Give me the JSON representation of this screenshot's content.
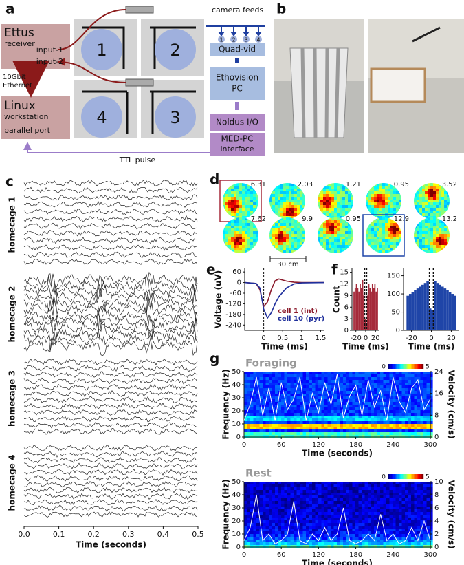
{
  "panel_a": {
    "label": "a",
    "ettus": {
      "title": "Ettus",
      "subtitle": "receiver",
      "inputs": [
        "input-1",
        "input-2"
      ]
    },
    "link": [
      "10Gbit",
      "Ethernet"
    ],
    "linux": {
      "title": "Linux",
      "subtitle": "workstation",
      "port": "parallel port"
    },
    "cages": [
      "1",
      "2",
      "4",
      "3"
    ],
    "camera_feeds": "camera feeds",
    "feeds": [
      "1",
      "2",
      "3",
      "4"
    ],
    "quad_vid": "Quad-vid",
    "ethovision": [
      "Ethovision",
      "PC"
    ],
    "noldus": "Noldus I/O",
    "med_pc": [
      "MED-PC",
      "interface"
    ],
    "ttl": "TTL pulse"
  },
  "panel_b": {
    "label": "b"
  },
  "panel_c": {
    "label": "c",
    "groups": [
      "homecage 1",
      "homecage 2",
      "homecage 3",
      "homecage 4"
    ],
    "xlim": [
      0,
      0.5
    ],
    "xticks": [
      {
        "value": 0,
        "label": "0.0"
      },
      0.1,
      0.2,
      0.3,
      0.4,
      0.5
    ],
    "xlabel": "Time (seconds)"
  },
  "panel_d": {
    "label": "d",
    "rates": [
      6.31,
      2.03,
      1.21,
      0.95,
      3.52,
      7.62,
      9.9,
      0.95,
      12.9,
      13.2
    ],
    "scale": "30 cm"
  },
  "chart_data": [
    {
      "type": "line",
      "label": "e",
      "xlabel": "Time (ms)",
      "ylabel": "Voltage (uV)",
      "xlim": [
        -0.5,
        1.6
      ],
      "ylim": [
        -270,
        80
      ],
      "xticks": [
        0,
        0.5,
        1,
        1.5
      ],
      "yticks": [
        60,
        0,
        -60,
        -120,
        -180,
        -240
      ],
      "x": [
        -0.5,
        -0.2,
        -0.1,
        0,
        0.1,
        0.2,
        0.3,
        0.4,
        0.6,
        0.8,
        1.0,
        1.6
      ],
      "series": [
        {
          "name": "cell 1 (int)",
          "color": "#8b1a2b",
          "values": [
            0,
            -5,
            -40,
            -135,
            -110,
            -40,
            10,
            20,
            8,
            2,
            0,
            0
          ]
        },
        {
          "name": "cell 10 (pyr)",
          "color": "#1f2f9c",
          "values": [
            0,
            -5,
            -30,
            -150,
            -200,
            -170,
            -120,
            -80,
            -30,
            -8,
            -2,
            0
          ]
        }
      ]
    },
    {
      "type": "histogram",
      "label": "f",
      "ylabel": "Count",
      "xlabel": "Time (ms)",
      "color": "#a52a3a",
      "xlim": [
        -28,
        28
      ],
      "ylim": [
        0,
        16
      ],
      "xticks": [
        -20,
        0,
        20
      ],
      "yticks": [
        0,
        3,
        6,
        9,
        12,
        15
      ],
      "bins": [
        -25,
        -22.5,
        -20,
        -17.5,
        -15,
        -12.5,
        -10,
        -7.5,
        -5,
        -2.5,
        0,
        2.5,
        5,
        7.5,
        10,
        12.5,
        15,
        17.5,
        20,
        22.5,
        25
      ],
      "values": [
        10,
        11,
        12,
        11,
        10,
        12,
        11,
        13,
        9,
        3,
        2,
        9,
        12,
        11,
        10,
        12,
        11,
        12,
        10,
        11
      ]
    },
    {
      "type": "histogram",
      "xlabel": "Time (ms)",
      "color": "#1f45a8",
      "xlim": [
        -28,
        28
      ],
      "ylim": [
        0,
        170
      ],
      "xticks": [
        -20,
        0,
        20
      ],
      "yticks": [
        0,
        50,
        100,
        150
      ],
      "bins": [
        -25,
        -22.5,
        -20,
        -17.5,
        -15,
        -12.5,
        -10,
        -7.5,
        -5,
        -2.5,
        0,
        2.5,
        5,
        7.5,
        10,
        12.5,
        15,
        17.5,
        20,
        22.5,
        25
      ],
      "values": [
        95,
        100,
        105,
        110,
        115,
        120,
        125,
        130,
        135,
        60,
        55,
        135,
        130,
        125,
        120,
        115,
        110,
        105,
        100,
        95
      ]
    },
    {
      "type": "spectrogram",
      "label": "g",
      "title": "Foraging",
      "xlabel": "Time (seconds)",
      "ylabel": "Frequency (Hz)",
      "y2label": "Velocity (cm/s)",
      "xlim": [
        0,
        300
      ],
      "ylim": [
        0,
        50
      ],
      "y2lim": [
        0,
        24
      ],
      "xticks": [
        0,
        60,
        120,
        180,
        240,
        300
      ],
      "yticks": [
        0,
        10,
        20,
        30,
        40,
        50
      ],
      "y2ticks": [
        0,
        8,
        16,
        24
      ],
      "colorbar": [
        0,
        5
      ],
      "x": [
        0,
        10,
        20,
        30,
        40,
        50,
        60,
        70,
        80,
        90,
        100,
        110,
        120,
        130,
        140,
        150,
        160,
        170,
        180,
        190,
        200,
        210,
        220,
        230,
        240,
        250,
        260,
        270,
        280,
        290,
        300
      ],
      "series": [
        {
          "name": "Velocity",
          "color": "#ffffff",
          "axis": "y2",
          "values": [
            6,
            12,
            22,
            8,
            18,
            6,
            20,
            10,
            14,
            22,
            6,
            16,
            9,
            20,
            12,
            23,
            7,
            15,
            19,
            8,
            21,
            11,
            17,
            6,
            22,
            13,
            9,
            18,
            21,
            10,
            14
          ]
        }
      ]
    },
    {
      "type": "spectrogram",
      "title": "Rest",
      "xlabel": "Time (seconds)",
      "ylabel": "Frequency (Hz)",
      "y2label": "Velocity (cm/s)",
      "xlim": [
        0,
        300
      ],
      "ylim": [
        0,
        50
      ],
      "y2lim": [
        0,
        10
      ],
      "xticks": [
        0,
        60,
        120,
        180,
        240,
        300
      ],
      "yticks": [
        0,
        10,
        20,
        30,
        40,
        50
      ],
      "y2ticks": [
        0,
        2,
        4,
        6,
        8,
        10
      ],
      "colorbar": [
        0,
        5
      ],
      "x": [
        0,
        10,
        20,
        30,
        40,
        50,
        60,
        70,
        80,
        90,
        100,
        110,
        120,
        130,
        140,
        150,
        160,
        170,
        180,
        190,
        200,
        210,
        220,
        230,
        240,
        250,
        260,
        270,
        280,
        290,
        300
      ],
      "series": [
        {
          "name": "Velocity",
          "color": "#ffffff",
          "axis": "y2",
          "values": [
            1,
            3,
            8,
            1,
            2,
            0.5,
            1,
            2,
            7,
            1,
            0.5,
            2,
            1,
            3,
            1,
            2,
            6,
            1,
            0.5,
            1,
            2,
            1,
            5,
            1,
            2,
            0.5,
            1,
            3,
            1,
            4,
            1
          ]
        }
      ]
    }
  ]
}
